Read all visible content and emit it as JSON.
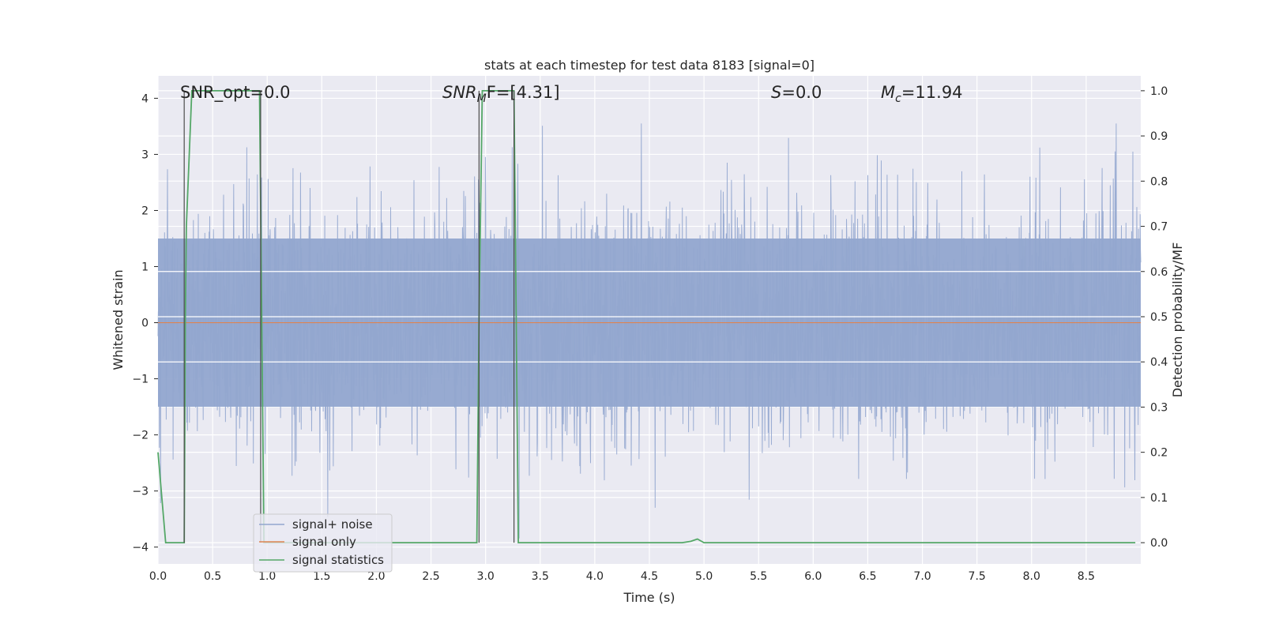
{
  "chart_data": {
    "type": "line",
    "title": "stats at each timestep for test data 8183 [signal=0]",
    "xlabel": "Time (s)",
    "ylabel": "Whitened strain",
    "y2label": "Detection probability/MF",
    "xlim": [
      0,
      9.0
    ],
    "ylim": [
      -4.3,
      4.4
    ],
    "y2lim": [
      -0.047,
      1.033
    ],
    "xticks": [
      "0.0",
      "0.5",
      "1.0",
      "1.5",
      "2.0",
      "2.5",
      "3.0",
      "3.5",
      "4.0",
      "4.5",
      "5.0",
      "5.5",
      "6.0",
      "6.5",
      "7.0",
      "7.5",
      "8.0",
      "8.5"
    ],
    "yticks": [
      "4",
      "3",
      "2",
      "1",
      "0",
      "−1",
      "−2",
      "−3",
      "−4"
    ],
    "y2ticks": [
      "1.0",
      "0.9",
      "0.8",
      "0.7",
      "0.6",
      "0.5",
      "0.4",
      "0.3",
      "0.2",
      "0.1",
      "0.0"
    ],
    "grid": true,
    "legend_position": "lower-left",
    "annotations": {
      "snr_opt": "SNR_opt=0.0",
      "snr_mf_main": "SNR",
      "snr_mf_sub": "M",
      "snr_mf_rest": "F=[4.31]",
      "s_main": "S",
      "s_rest": "=0.0",
      "mc_main": "M",
      "mc_sub": "c",
      "mc_rest": "=11.94"
    },
    "series": [
      {
        "name": "signal+ noise",
        "color": "#92a6cf",
        "axis": "left",
        "description_range": [
          -4.0,
          3.55
        ],
        "typical_envelope": [
          -2.6,
          2.9
        ]
      },
      {
        "name": "signal only",
        "color": "#dd8452",
        "axis": "left",
        "values_constant": 0.0
      },
      {
        "name": "signal statistics",
        "color": "#55a868",
        "axis": "right",
        "x": [
          0.0,
          0.07,
          0.14,
          0.24,
          0.25,
          0.26,
          0.31,
          0.4,
          0.6,
          0.93,
          0.95,
          0.97,
          1.2,
          2.5,
          2.92,
          2.94,
          2.97,
          3.05,
          3.2,
          3.26,
          3.28,
          3.3,
          3.5,
          4.8,
          4.88,
          4.94,
          5.0,
          5.1,
          8.95
        ],
        "y": [
          0.2,
          0.0,
          0.0,
          0.0,
          0.5,
          0.7,
          1.0,
          1.0,
          1.0,
          1.0,
          0.5,
          0.0,
          0.0,
          0.0,
          0.0,
          0.5,
          1.0,
          1.0,
          1.0,
          1.0,
          0.5,
          0.0,
          0.0,
          0.0,
          0.003,
          0.008,
          0.0,
          0.0,
          0.0
        ]
      }
    ]
  }
}
